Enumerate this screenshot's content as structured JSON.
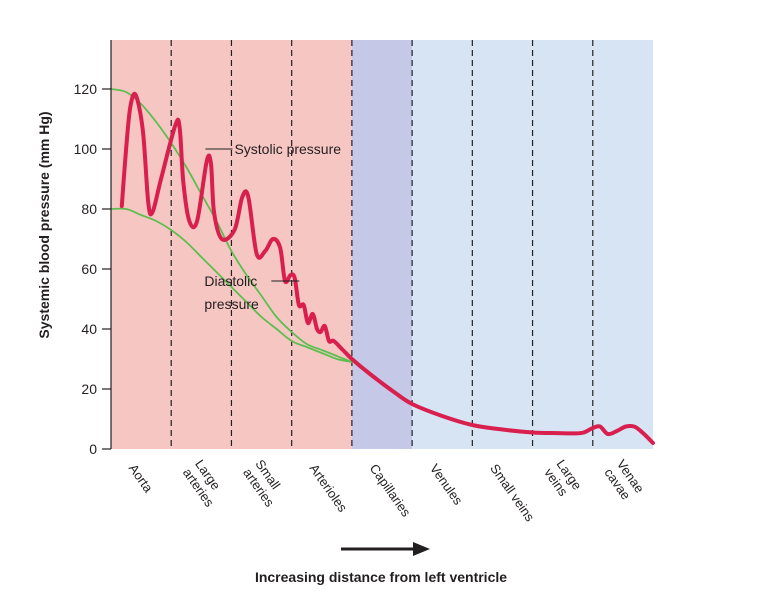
{
  "chart_data": {
    "type": "line",
    "title": "",
    "ylabel": "Systemic blood pressure (mm Hg)",
    "xlabel": "Increasing distance from left ventricle",
    "ylim": [
      0,
      120
    ],
    "yticks": [
      0,
      20,
      40,
      60,
      80,
      100,
      120
    ],
    "grid": false,
    "regions": [
      {
        "label": "Aorta",
        "color": "#f6c6c3"
      },
      {
        "label": "Large arteries",
        "color": "#f6c6c3"
      },
      {
        "label": "Small arteries",
        "color": "#f6c6c3"
      },
      {
        "label": "Arterioles",
        "color": "#f6c6c3"
      },
      {
        "label": "Capillaries",
        "color": "#c5c8e6"
      },
      {
        "label": "Venules",
        "color": "#d6e4f4"
      },
      {
        "label": "Small veins",
        "color": "#d6e4f4"
      },
      {
        "label": "Large veins",
        "color": "#d6e4f4"
      },
      {
        "label": "Venae cavae",
        "color": "#d6e4f4"
      }
    ],
    "region_bounds": [
      0,
      1,
      2,
      3,
      4,
      5,
      6,
      7,
      8,
      9
    ],
    "series": [
      {
        "name": "Systolic pressure",
        "color": "#5cbf4f",
        "x": [
          0,
          0.25,
          0.5,
          0.75,
          1.0,
          1.25,
          1.5,
          1.75,
          2.0,
          2.25,
          2.5,
          2.75,
          3.0,
          3.25,
          3.5,
          3.75,
          4.0
        ],
        "y": [
          120,
          119,
          115,
          109,
          102,
          94,
          85,
          76,
          66,
          58,
          51,
          44,
          39,
          35,
          33,
          31,
          29
        ]
      },
      {
        "name": "Diastolic pressure",
        "color": "#5cbf4f",
        "x": [
          0,
          0.25,
          0.5,
          0.75,
          1.0,
          1.25,
          1.5,
          1.75,
          2.0,
          2.25,
          2.5,
          2.75,
          3.0,
          3.25,
          3.5,
          3.75,
          4.0
        ],
        "y": [
          80,
          80,
          78,
          76,
          73,
          69,
          64,
          59,
          54,
          49,
          44,
          40,
          36,
          34,
          32,
          30,
          29
        ]
      },
      {
        "name": "",
        "color": "#d91f4e",
        "x": [
          0.18,
          0.25,
          0.32,
          0.41,
          0.53,
          0.62,
          0.69,
          0.83,
          1.07,
          1.14,
          1.2,
          1.3,
          1.43,
          1.59,
          1.66,
          1.71,
          1.84,
          2.05,
          2.18,
          2.28,
          2.42,
          2.56,
          2.69,
          2.81,
          2.89,
          2.98,
          3.05,
          3.12,
          3.2,
          3.27,
          3.35,
          3.42,
          3.48,
          3.55,
          3.62,
          3.7,
          3.85,
          4.0,
          4.3,
          4.7,
          5.0,
          5.5,
          6.0,
          6.5,
          7.0,
          7.4,
          7.7,
          7.85,
          8.0,
          8.12,
          8.25,
          8.4,
          8.55,
          8.7,
          8.85,
          9.0
        ],
        "y": [
          81,
          100,
          114,
          118,
          106,
          82,
          79,
          90,
          108,
          107,
          89,
          76,
          76,
          96,
          95,
          79,
          70,
          73,
          84,
          84,
          65,
          66,
          70,
          67,
          56,
          58,
          57,
          48,
          48,
          42,
          45,
          40,
          39,
          41,
          36,
          36,
          33,
          30,
          25,
          19,
          15,
          11,
          8,
          6.5,
          5.5,
          5.3,
          5.2,
          5.5,
          7,
          7.5,
          5,
          6,
          7.5,
          7.4,
          5,
          2
        ]
      }
    ],
    "annotations": [
      {
        "label": "Systolic pressure",
        "x": 2.05,
        "y": 100
      },
      {
        "label": "Diastolic",
        "x": 1.55,
        "y": 56
      },
      {
        "label": "pressure",
        "x": 1.55,
        "y": 50
      }
    ],
    "x_arrow": true
  }
}
